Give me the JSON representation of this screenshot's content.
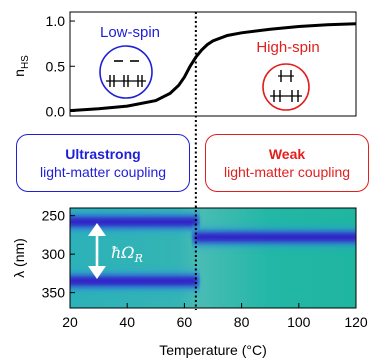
{
  "chart_data": [
    {
      "type": "line",
      "ylabel": "n_HS",
      "xlim": [
        20,
        120
      ],
      "ylim": [
        -0.05,
        1.1
      ],
      "y_ticks": [
        "0.0",
        "0.5",
        "1.0"
      ],
      "series": [
        {
          "x": [
            20,
            30,
            40,
            50,
            55,
            58,
            60,
            62,
            64,
            66,
            68,
            70,
            75,
            80,
            90,
            100,
            110,
            120
          ],
          "y": [
            0.01,
            0.03,
            0.06,
            0.12,
            0.2,
            0.29,
            0.38,
            0.5,
            0.6,
            0.68,
            0.74,
            0.78,
            0.84,
            0.87,
            0.91,
            0.94,
            0.96,
            0.97
          ],
          "color": "#000000"
        }
      ],
      "vline_x": 64,
      "annotations": {
        "low_spin": "Low-spin",
        "high_spin": "High-spin"
      }
    },
    {
      "type": "heatmap",
      "xlabel": "Temperature (°C)",
      "ylabel": "λ (nm)",
      "xlim": [
        20,
        120
      ],
      "ylim_reversed": [
        240,
        370
      ],
      "x_ticks": [
        "20",
        "40",
        "60",
        "80",
        "100",
        "120"
      ],
      "y_ticks": [
        "250",
        "300",
        "350"
      ],
      "x_tick_values": [
        20,
        40,
        60,
        80,
        100,
        120
      ],
      "y_tick_values": [
        250,
        300,
        350
      ],
      "bands": [
        {
          "segments": [
            {
              "x0": 20,
              "x1": 64,
              "y": 258
            },
            {
              "x0": 64,
              "x1": 120,
              "y": 278
            }
          ]
        },
        {
          "segments": [
            {
              "x0": 20,
              "x1": 64,
              "y": 335
            }
          ]
        }
      ],
      "vline_x": 64,
      "annotation": "ħΩR",
      "colors": {
        "background": "#1fb8a6",
        "mid": "#3fb0b8",
        "band": "#3218c6"
      }
    }
  ],
  "boxes": {
    "left": {
      "line1": "Ultrastrong",
      "line2": "light-matter coupling"
    },
    "right": {
      "line1": "Weak",
      "line2": "light-matter coupling"
    }
  }
}
